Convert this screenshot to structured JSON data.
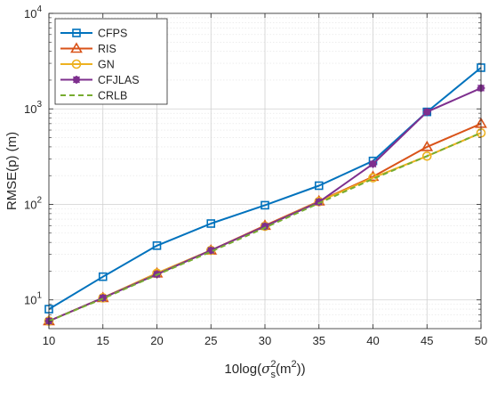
{
  "chart_data": {
    "type": "line",
    "title": "",
    "xlabel_parts": {
      "pre": "10log(",
      "sigma": "σ",
      "sub": "s",
      "sup": "2",
      "mid": "(m",
      "sup2": "2",
      "post": "))"
    },
    "ylabel": "RMSE(p) (m)",
    "xlim": [
      10,
      50
    ],
    "ylim": [
      5,
      10000
    ],
    "yscale": "log",
    "grid": true,
    "legend_position": "top-left",
    "x_ticks": [
      "10",
      "15",
      "20",
      "25",
      "30",
      "35",
      "40",
      "45",
      "50"
    ],
    "y_tick_labels": [
      {
        "base": "10",
        "exp": "1",
        "value": 10
      },
      {
        "base": "10",
        "exp": "2",
        "value": 100
      },
      {
        "base": "10",
        "exp": "3",
        "value": 1000
      },
      {
        "base": "10",
        "exp": "4",
        "value": 10000
      }
    ],
    "x": [
      10,
      15,
      20,
      25,
      30,
      35,
      40,
      45,
      50
    ],
    "series": [
      {
        "name": "CFPS",
        "color": "#0072BD",
        "marker": "square",
        "dashed": false,
        "values": [
          8,
          17.5,
          37,
          63,
          98,
          157,
          285,
          930,
          2700
        ]
      },
      {
        "name": "RIS",
        "color": "#D95319",
        "marker": "triangle",
        "dashed": false,
        "values": [
          6,
          10.5,
          19,
          33,
          60,
          108,
          195,
          400,
          700
        ]
      },
      {
        "name": "GN",
        "color": "#EDB120",
        "marker": "circle",
        "dashed": false,
        "values": [
          6,
          10.5,
          19,
          33,
          59,
          107,
          190,
          320,
          560
        ]
      },
      {
        "name": "CFJLAS",
        "color": "#7E2F8E",
        "marker": "star",
        "dashed": false,
        "values": [
          6,
          10.5,
          18.5,
          33,
          59,
          106,
          265,
          930,
          1650
        ]
      },
      {
        "name": "CRLB",
        "color": "#77AC30",
        "marker": "none",
        "dashed": true,
        "values": [
          6,
          10.3,
          18.3,
          32,
          57,
          103,
          185,
          320,
          560
        ]
      }
    ]
  }
}
